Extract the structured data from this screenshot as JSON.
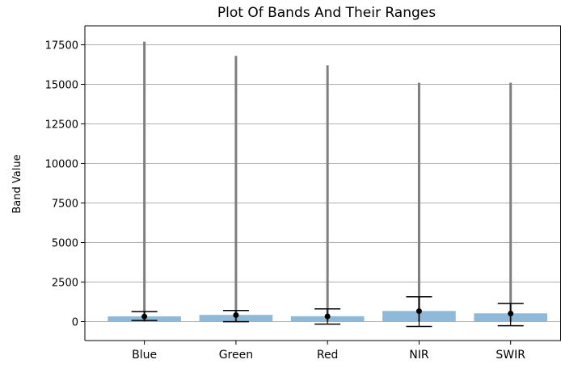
{
  "chart_data": {
    "type": "bar",
    "title": "Plot Of Bands And Their Ranges",
    "xlabel": "",
    "ylabel": "Band Value",
    "categories": [
      "Blue",
      "Green",
      "Red",
      "NIR",
      "SWIR"
    ],
    "values": [
      330,
      420,
      340,
      670,
      520
    ],
    "mean": [
      320,
      410,
      330,
      660,
      510
    ],
    "std_lower": [
      70,
      -10,
      -160,
      -310,
      -260
    ],
    "std_upper": [
      630,
      700,
      800,
      1570,
      1140
    ],
    "range_min": [
      0,
      0,
      0,
      0,
      0
    ],
    "range_max": [
      17700,
      16800,
      16200,
      15100,
      15100
    ],
    "ylim": [
      -1200,
      18700
    ],
    "yticks": [
      0,
      2500,
      5000,
      7500,
      10000,
      12500,
      15000,
      17500
    ],
    "grid": "y",
    "colors": {
      "bar": "#8fb9d9",
      "range_line": "#7f7f7f",
      "error_bar": "#000000",
      "grid": "#b0b0b0"
    }
  }
}
